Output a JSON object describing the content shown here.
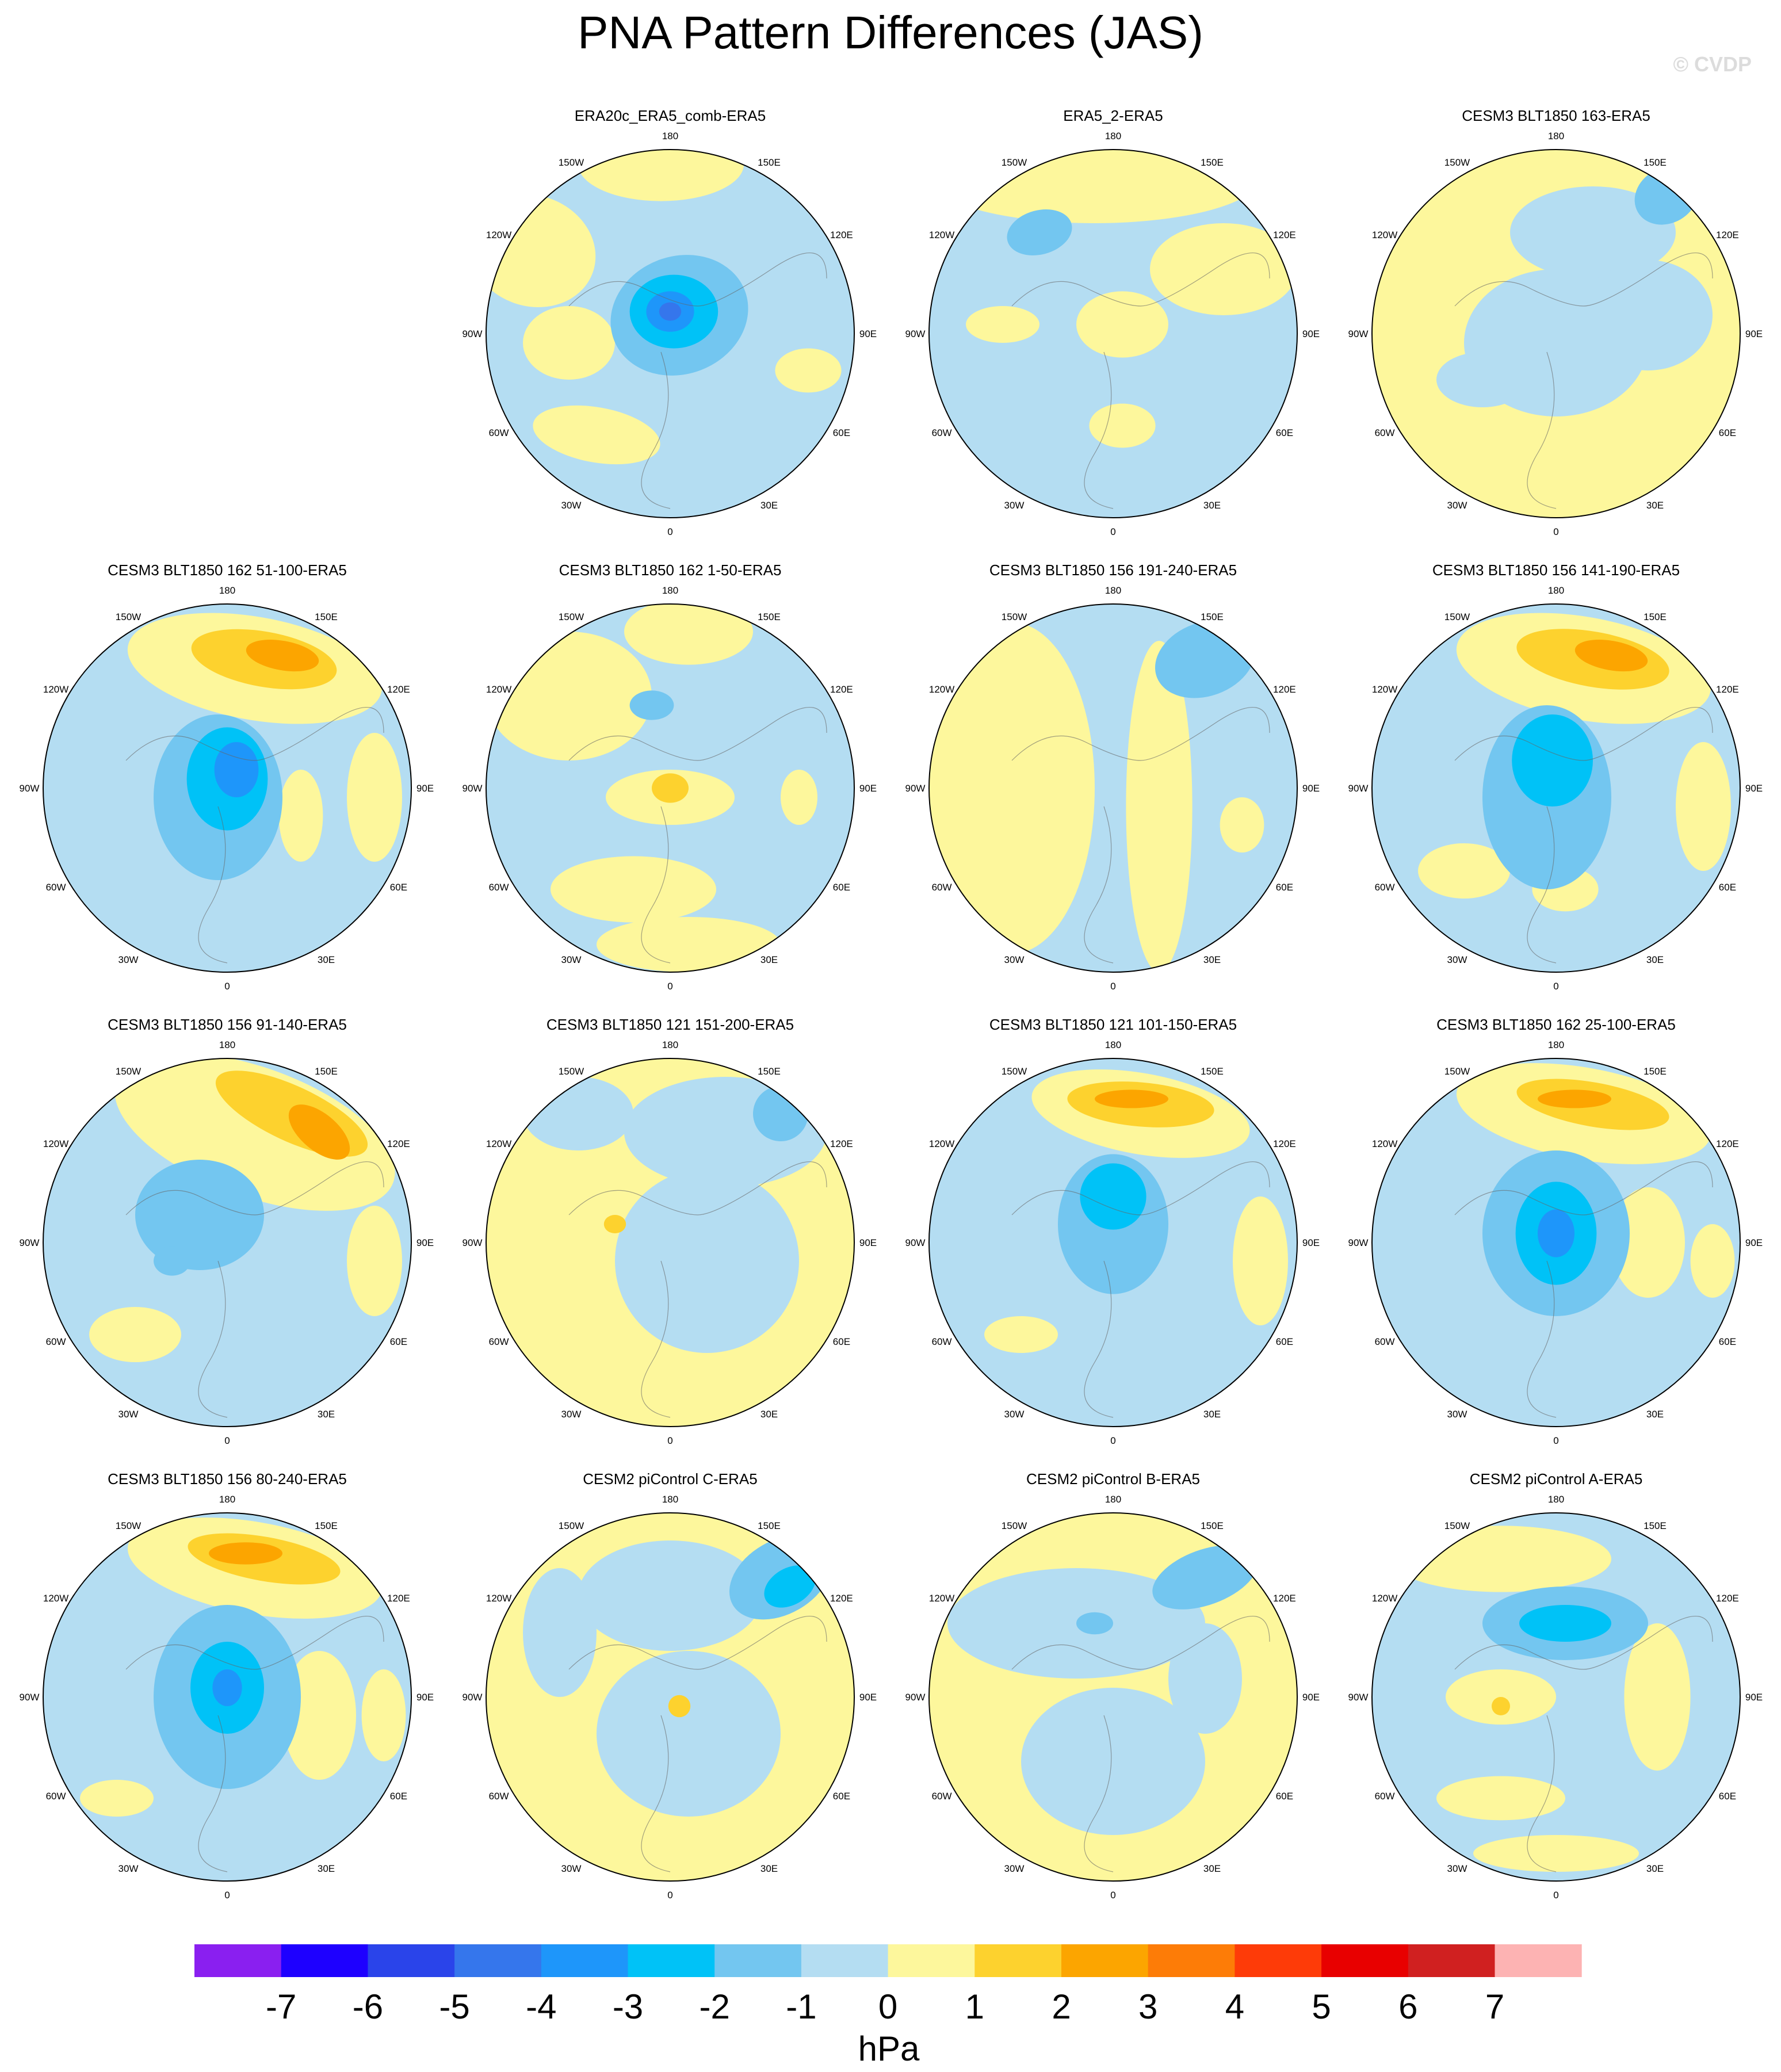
{
  "title": "PNA Pattern Differences (JAS)",
  "watermark": "© CVDP",
  "lon_labels": {
    "top": "180",
    "bottom": "0",
    "upper_left": "150W",
    "upper_right": "150E",
    "mid_upper_left": "120W",
    "mid_upper_right": "120E",
    "left": "90W",
    "right": "90E",
    "mid_lower_left": "60W",
    "mid_lower_right": "60E",
    "lower_left": "30W",
    "lower_right": "30E"
  },
  "panels": [
    {
      "title": "ERA20c_ERA5_comb-ERA5",
      "pattern": "era20c"
    },
    {
      "title": "ERA5_2-ERA5",
      "pattern": "era5_2"
    },
    {
      "title": "CESM3 BLT1850 163-ERA5",
      "pattern": "b163"
    },
    {
      "title": "CESM3 BLT1850 162 51-100-ERA5",
      "pattern": "b162_51"
    },
    {
      "title": "CESM3 BLT1850 162 1-50-ERA5",
      "pattern": "b162_1"
    },
    {
      "title": "CESM3 BLT1850 156 191-240-ERA5",
      "pattern": "b156_191"
    },
    {
      "title": "CESM3 BLT1850 156 141-190-ERA5",
      "pattern": "b156_141"
    },
    {
      "title": "CESM3 BLT1850 156 91-140-ERA5",
      "pattern": "b156_91"
    },
    {
      "title": "CESM3 BLT1850 121 151-200-ERA5",
      "pattern": "b121_151"
    },
    {
      "title": "CESM3 BLT1850 121 101-150-ERA5",
      "pattern": "b121_101"
    },
    {
      "title": "CESM3 BLT1850 162 25-100-ERA5",
      "pattern": "b162_25"
    },
    {
      "title": "CESM3 BLT1850 156 80-240-ERA5",
      "pattern": "b156_80"
    },
    {
      "title": "CESM2 piControl C-ERA5",
      "pattern": "picC"
    },
    {
      "title": "CESM2 piControl B-ERA5",
      "pattern": "picB"
    },
    {
      "title": "CESM2 piControl A-ERA5",
      "pattern": "picA"
    }
  ],
  "colorbar": {
    "unit": "hPa",
    "tick_labels": [
      "-7",
      "-6",
      "-5",
      "-4",
      "-3",
      "-2",
      "-1",
      "0",
      "1",
      "2",
      "3",
      "4",
      "5",
      "6",
      "7"
    ],
    "colors": [
      "#8a1ff0",
      "#1e00ff",
      "#2a44ea",
      "#3576ec",
      "#1e96fa",
      "#00c2f7",
      "#73c6f0",
      "#b4ddf2",
      "#fdf79c",
      "#fdd22e",
      "#fca500",
      "#fd7c07",
      "#fe3b08",
      "#e80000",
      "#d02020",
      "#fdb3b3"
    ]
  }
}
